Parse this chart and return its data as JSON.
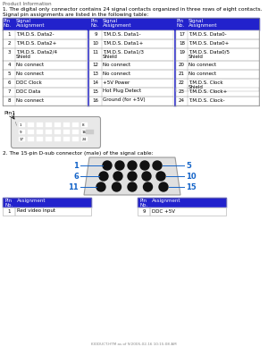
{
  "page_header": "Product Information",
  "intro_line1": "1. The digital only connector contains 24 signal contacts organized in three rows of eight contacts.",
  "intro_line2": "Signal pin assignments are listed in the following table:",
  "header_bg": "#2222CC",
  "header_fg": "#FFFFFF",
  "col1_pins": [
    1,
    2,
    3,
    4,
    5,
    6,
    7,
    8
  ],
  "col1_signals": [
    "T.M.D.S. Data2-",
    "T.M.D.S. Data2+",
    "T.M.D.S. Data2/4\nShield",
    "No connect",
    "No connect",
    "DDC Clock",
    "DDC Data",
    "No connect"
  ],
  "col2_pins": [
    9,
    10,
    11,
    12,
    13,
    14,
    15,
    16
  ],
  "col2_signals": [
    "T.M.D.S. Data1-",
    "T.M.D.S. Data1+",
    "T.M.D.S. Data1/3\nShield",
    "No connect",
    "No connect",
    "+5V Power",
    "Hot Plug Detect",
    "Ground (for +5V)"
  ],
  "col3_pins": [
    17,
    18,
    19,
    20,
    21,
    22,
    23,
    24
  ],
  "col3_signals": [
    "T.M.D.S. Data0-",
    "T.M.D.S. Data0+",
    "T.M.D.S. Data0/5\nShield",
    "No connect",
    "No connect",
    "T.M.D.S. Clock\nShield",
    "T.M.D.S. Clock+",
    "T.M.D.S. Clock-"
  ],
  "section2_text": "2. The 15-pin D-sub connector (male) of the signal cable:",
  "bottom_row1": [
    "1",
    "Red video input",
    "9",
    "DDC +5V"
  ],
  "footer_text": "KIODUCT.HTM as of 9/2005-02-16 10:15:08 AM",
  "bg_color": "#FFFFFF",
  "text_color": "#000000",
  "blue_color": "#1464C8",
  "two_line_pins": [
    3,
    11,
    19,
    22
  ]
}
